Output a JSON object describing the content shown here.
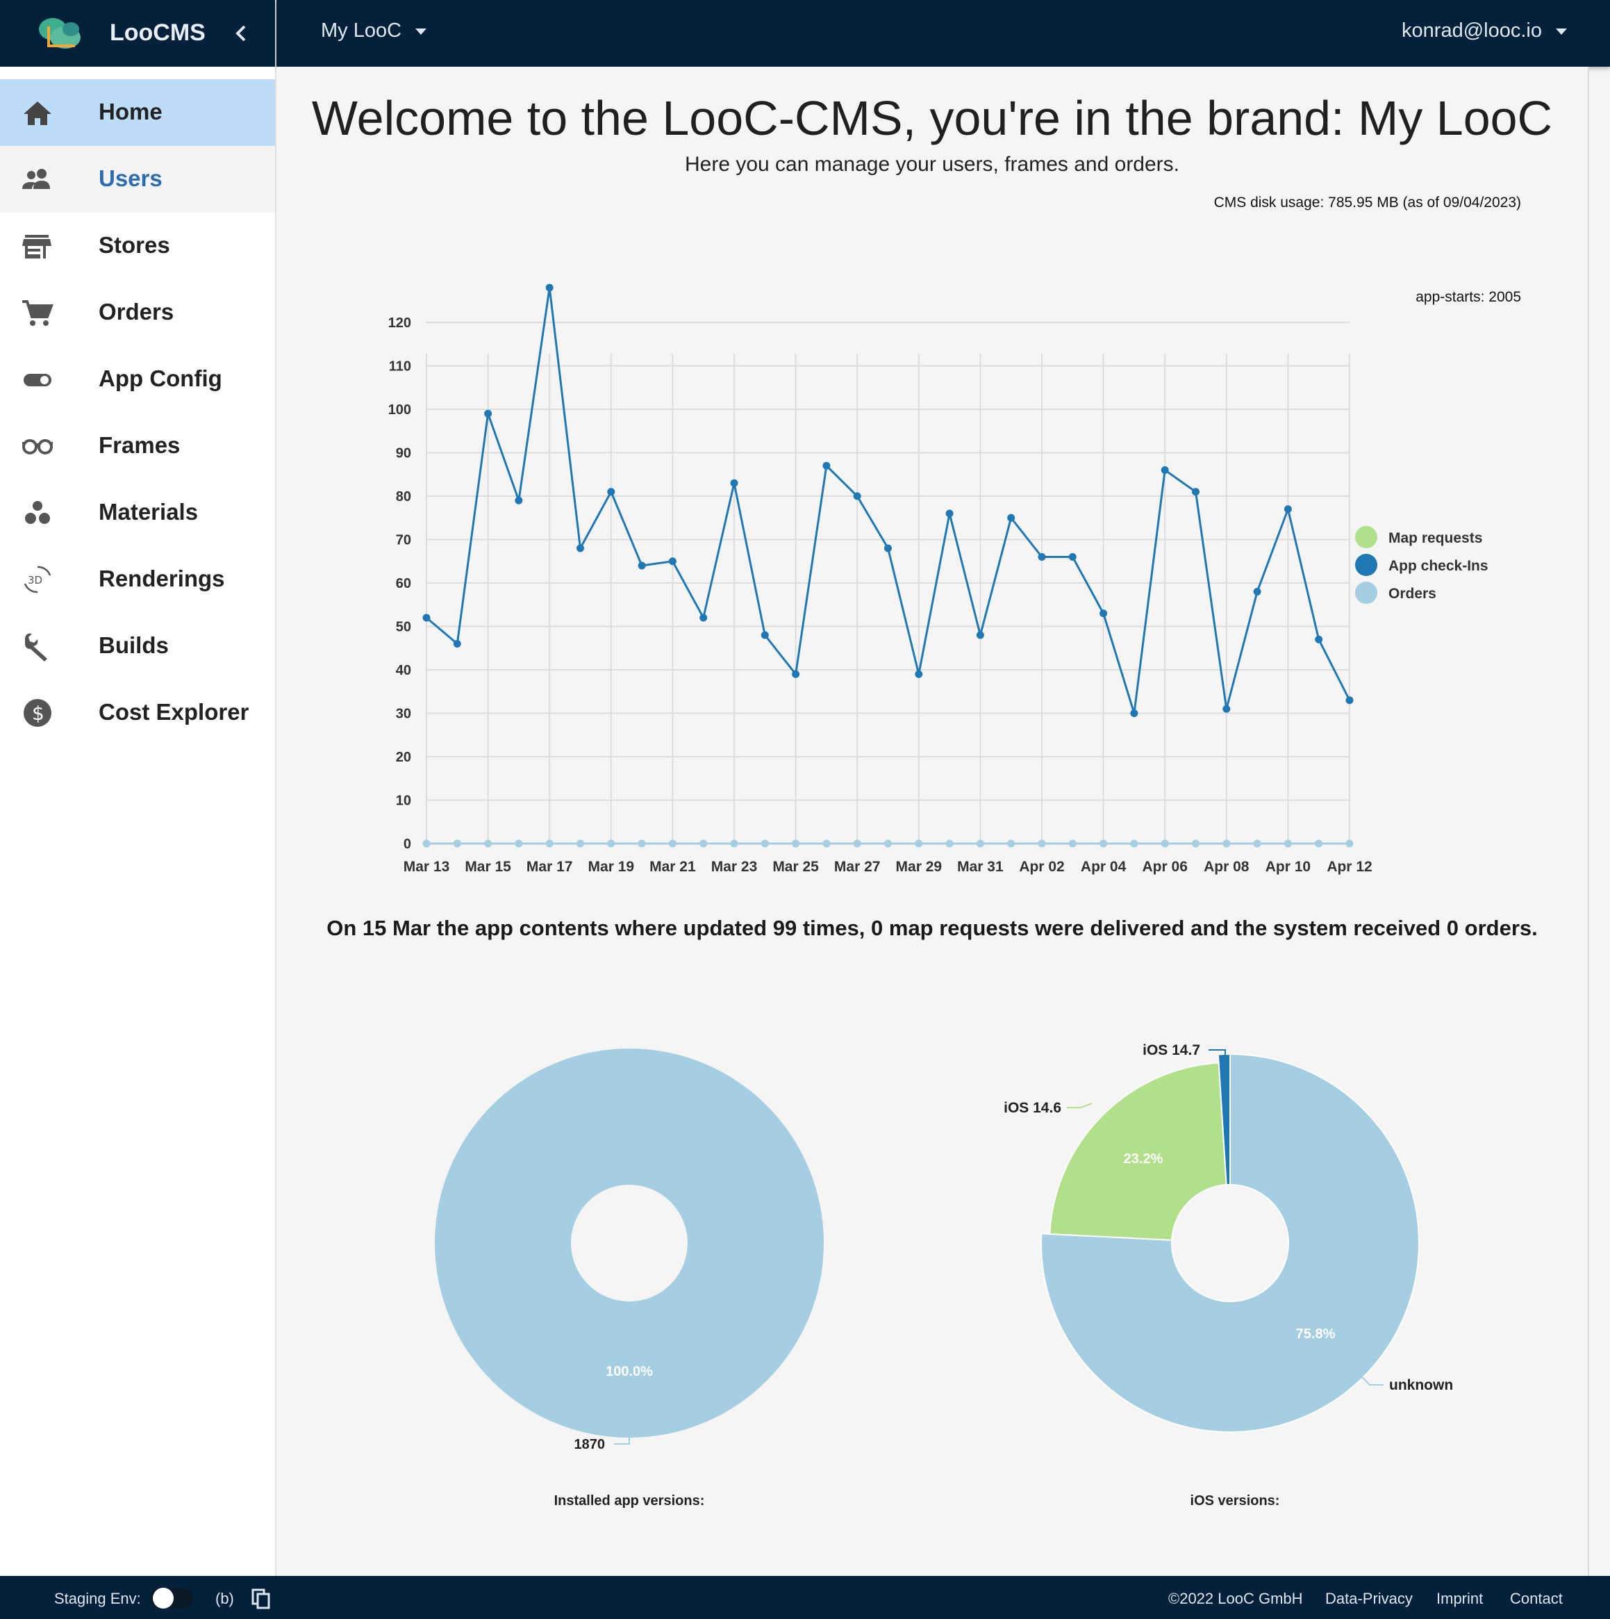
{
  "sidebar": {
    "brand_name": "LooCMS",
    "collapse_icon": "chevron-left-icon",
    "items": [
      {
        "label": "Home",
        "icon": "home-icon",
        "state": "active"
      },
      {
        "label": "Users",
        "icon": "users-icon",
        "state": "hover"
      },
      {
        "label": "Stores",
        "icon": "store-icon",
        "state": ""
      },
      {
        "label": "Orders",
        "icon": "cart-icon",
        "state": ""
      },
      {
        "label": "App Config",
        "icon": "toggle-icon",
        "state": ""
      },
      {
        "label": "Frames",
        "icon": "glasses-icon",
        "state": ""
      },
      {
        "label": "Materials",
        "icon": "bubbles-icon",
        "state": ""
      },
      {
        "label": "Renderings",
        "icon": "3d-rotation-icon",
        "state": ""
      },
      {
        "label": "Builds",
        "icon": "wrench-icon",
        "state": ""
      },
      {
        "label": "Cost Explorer",
        "icon": "dollar-icon",
        "state": ""
      }
    ]
  },
  "topbar": {
    "brand_select": "My LooC",
    "user": "konrad@looc.io"
  },
  "main": {
    "title": "Welcome to the LooC-CMS, you're in the brand: My LooC",
    "subtitle": "Here you can manage your users, frames and orders.",
    "disk_usage": "CMS disk usage: 785.95 MB (as of 09/04/2023)",
    "app_starts": "app-starts: 2005",
    "summary": "On 15 Mar the app contents where updated 99 times, 0 map requests were delivered and the system received 0 orders."
  },
  "colors": {
    "navy": "#05203a",
    "active_nav": "#bcdcf7",
    "map_requests": "#b2df8a",
    "app_checkins": "#1f78b4",
    "orders": "#a6cee3"
  },
  "chart_data": [
    {
      "type": "line",
      "x": [
        "Mar 13",
        "Mar 14",
        "Mar 15",
        "Mar 16",
        "Mar 17",
        "Mar 18",
        "Mar 19",
        "Mar 20",
        "Mar 21",
        "Mar 22",
        "Mar 23",
        "Mar 24",
        "Mar 25",
        "Mar 26",
        "Mar 27",
        "Mar 28",
        "Mar 29",
        "Mar 30",
        "Mar 31",
        "Apr 01",
        "Apr 02",
        "Apr 03",
        "Apr 04",
        "Apr 05",
        "Apr 06",
        "Apr 07",
        "Apr 08",
        "Apr 09",
        "Apr 10",
        "Apr 11",
        "Apr 12"
      ],
      "x_tick_labels": [
        "Mar 13",
        "Mar 15",
        "Mar 17",
        "Mar 19",
        "Mar 21",
        "Mar 23",
        "Mar 25",
        "Mar 27",
        "Mar 29",
        "Mar 31",
        "Apr 02",
        "Apr 04",
        "Apr 06",
        "Apr 08",
        "Apr 10",
        "Apr 12"
      ],
      "y_ticks": [
        0,
        10,
        20,
        30,
        40,
        50,
        60,
        70,
        80,
        90,
        100,
        110,
        120
      ],
      "ylim": [
        0,
        128
      ],
      "grid": true,
      "legend_position": "right",
      "series": [
        {
          "name": "Map requests",
          "color": "#b2df8a",
          "values": [
            0,
            0,
            0,
            0,
            0,
            0,
            0,
            0,
            0,
            0,
            0,
            0,
            0,
            0,
            0,
            0,
            0,
            0,
            0,
            0,
            0,
            0,
            0,
            0,
            0,
            0,
            0,
            0,
            0,
            0,
            0
          ]
        },
        {
          "name": "App check-Ins",
          "color": "#1f78b4",
          "values": [
            52,
            46,
            99,
            79,
            128,
            68,
            81,
            64,
            65,
            52,
            83,
            48,
            39,
            87,
            80,
            68,
            39,
            76,
            48,
            75,
            66,
            66,
            53,
            30,
            86,
            81,
            31,
            58,
            77,
            47,
            33
          ]
        },
        {
          "name": "Orders",
          "color": "#a6cee3",
          "values": [
            0,
            0,
            0,
            0,
            0,
            0,
            0,
            0,
            0,
            0,
            0,
            0,
            0,
            0,
            0,
            0,
            0,
            0,
            0,
            0,
            0,
            0,
            0,
            0,
            0,
            0,
            0,
            0,
            0,
            0,
            0
          ]
        }
      ]
    },
    {
      "type": "pie",
      "title": "Installed app versions:",
      "slices": [
        {
          "label": "1870",
          "value": 100.0,
          "percent_label": "100.0%",
          "color": "#a6cee3"
        }
      ]
    },
    {
      "type": "pie",
      "title": "iOS versions:",
      "slices": [
        {
          "label": "unknown",
          "value": 75.8,
          "percent_label": "75.8%",
          "color": "#a6cee3"
        },
        {
          "label": "iOS 14.6",
          "value": 23.2,
          "percent_label": "23.2%",
          "color": "#b2df8a"
        },
        {
          "label": "iOS 14.7",
          "value": 1.0,
          "percent_label": "",
          "color": "#1f78b4"
        }
      ]
    }
  ],
  "footer": {
    "staging_label": "Staging Env:",
    "branch": "(b)",
    "copy_icon": "copy-icon",
    "copyright": "©2022 LooC GmbH",
    "links": [
      "Data-Privacy",
      "Imprint",
      "Contact"
    ]
  }
}
